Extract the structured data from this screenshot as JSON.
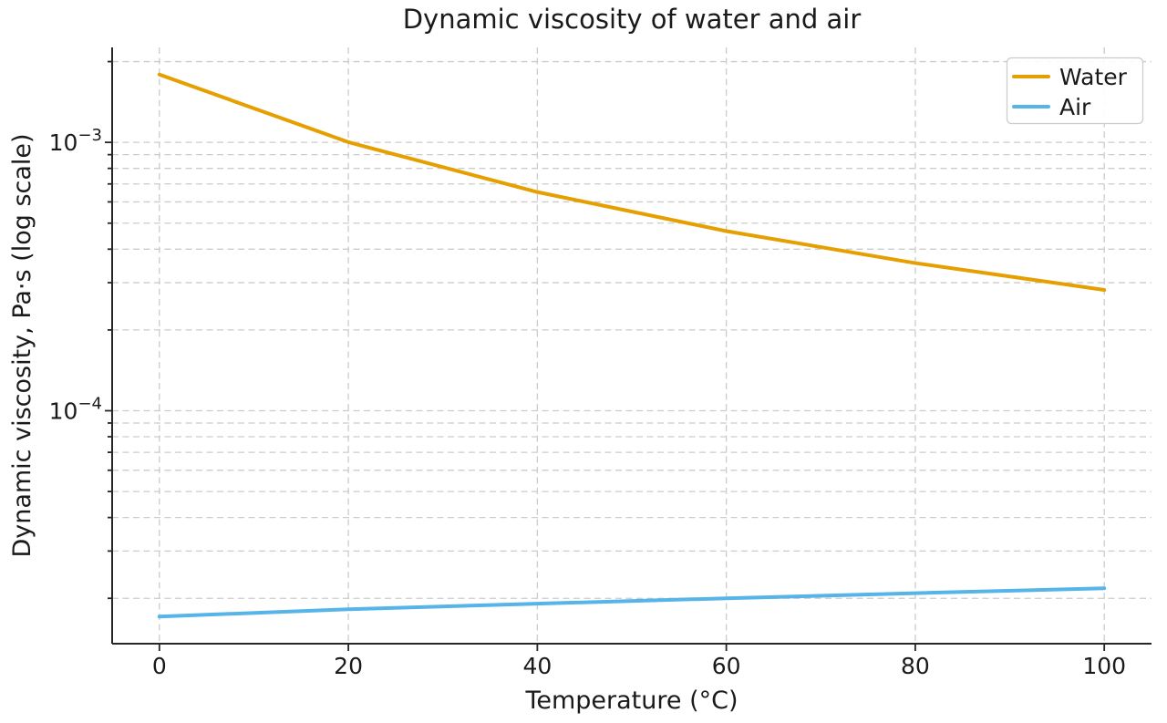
{
  "chart_data": {
    "type": "line",
    "title": "Dynamic viscosity of water and air",
    "xlabel": "Temperature (°C)",
    "ylabel": "Dynamic viscosity, Pa·s (log scale)",
    "x": [
      0,
      20,
      40,
      60,
      80,
      100
    ],
    "series": [
      {
        "name": "Water",
        "color": "#E69F00",
        "values": [
          0.00179,
          0.001002,
          0.000653,
          0.000467,
          0.000355,
          0.000282
        ]
      },
      {
        "name": "Air",
        "color": "#56B4E9",
        "values": [
          1.71e-05,
          1.82e-05,
          1.91e-05,
          2e-05,
          2.09e-05,
          2.18e-05
        ]
      }
    ],
    "xscale": "linear",
    "yscale": "log",
    "xlim": [
      -5,
      105
    ],
    "ylim": [
      1.355e-05,
      0.0022588
    ],
    "xticks": [
      0,
      20,
      40,
      60,
      80,
      100
    ],
    "ytick_exponents": [
      -3,
      -4
    ],
    "ytick_labels": [
      "10⁻³",
      "10⁻⁴"
    ],
    "grid": {
      "which": "both",
      "style": "dashed",
      "on": true
    },
    "legend": {
      "location": "upper right",
      "entries": [
        "Water",
        "Air"
      ]
    },
    "colors": {
      "grid": "#cccccc",
      "spine": "#262626",
      "text": "#1a1a1a",
      "background": "#ffffff"
    }
  }
}
